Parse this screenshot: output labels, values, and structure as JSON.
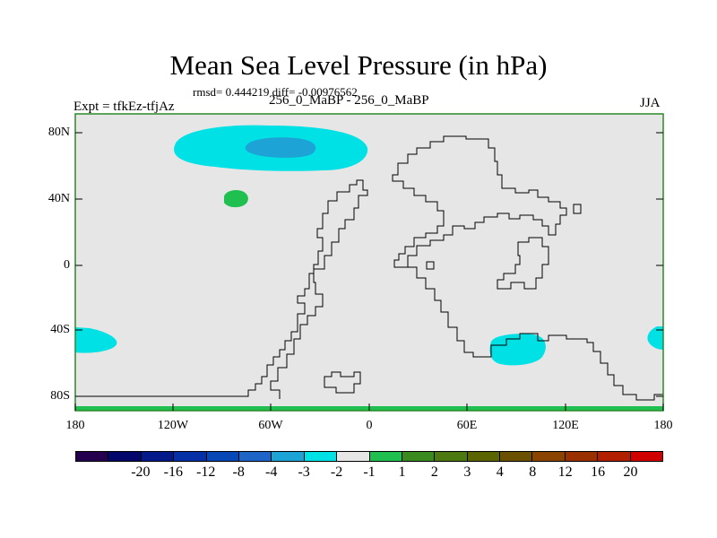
{
  "title": "Mean Sea Level Pressure (in hPa)",
  "stats": "rmsd= 0.444219 diff= -0.00976562",
  "left_label": "Expt = tfkEz-tfjAz",
  "center_label": "256_0_MaBP - 256_0_MaBP",
  "right_label": "JJA",
  "y_ticks": [
    "80N",
    "40N",
    "0",
    "40S",
    "80S"
  ],
  "x_ticks": [
    "180",
    "120W",
    "60W",
    "0",
    "60E",
    "120E",
    "180"
  ],
  "colorbar": {
    "colors": [
      "#24004f",
      "#03066b",
      "#04198a",
      "#0630a6",
      "#0848b6",
      "#1f65c8",
      "#1ea3d6",
      "#00e1e6",
      "#e6e6e6",
      "#20c050",
      "#3a8a20",
      "#4d7a10",
      "#5a6400",
      "#6a5000",
      "#8a4300",
      "#9a2f00",
      "#b21f00",
      "#d00000"
    ],
    "labels": [
      "-20",
      "-16",
      "-12",
      "-8",
      "-4",
      "-3",
      "-2",
      "-1",
      "1",
      "2",
      "3",
      "4",
      "8",
      "12",
      "16",
      "20"
    ]
  },
  "colors": {
    "background": "#e6e6e6",
    "light_negative": "#00e1e6",
    "medium_negative": "#1ea3d6",
    "positive": "#20c050",
    "border": "#2a8a2a"
  }
}
